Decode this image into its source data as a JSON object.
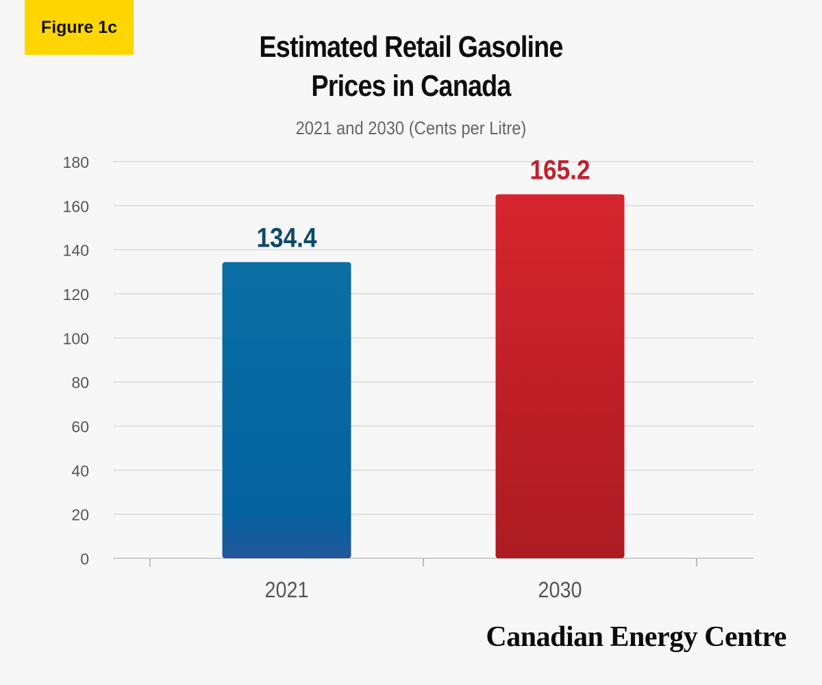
{
  "figure_label": "Figure 1c",
  "title_lines": [
    "Estimated Retail Gasoline",
    "Prices in Canada"
  ],
  "subtitle": "2021 and 2030 (Cents per Litre)",
  "brand": "Canadian Energy Centre",
  "colors": {
    "badge": "#ffd600",
    "bar_2021": "#0a6aa1",
    "bar_2030": "#d2232a",
    "label_2021": "#0b4a6e",
    "label_2030": "#c0202a"
  },
  "chart_data": {
    "type": "bar",
    "title": "Estimated Retail Gasoline Prices in Canada",
    "subtitle": "2021 and 2030 (Cents per Litre)",
    "categories": [
      "2021",
      "2030"
    ],
    "values": [
      134.4,
      165.2
    ],
    "data_labels": [
      "134.4",
      "165.2"
    ],
    "xlabel": "",
    "ylabel": "",
    "ylim": [
      0,
      180
    ],
    "yticks": [
      0,
      20,
      40,
      60,
      80,
      100,
      120,
      140,
      160,
      180
    ],
    "grid": true,
    "legend": "none"
  }
}
